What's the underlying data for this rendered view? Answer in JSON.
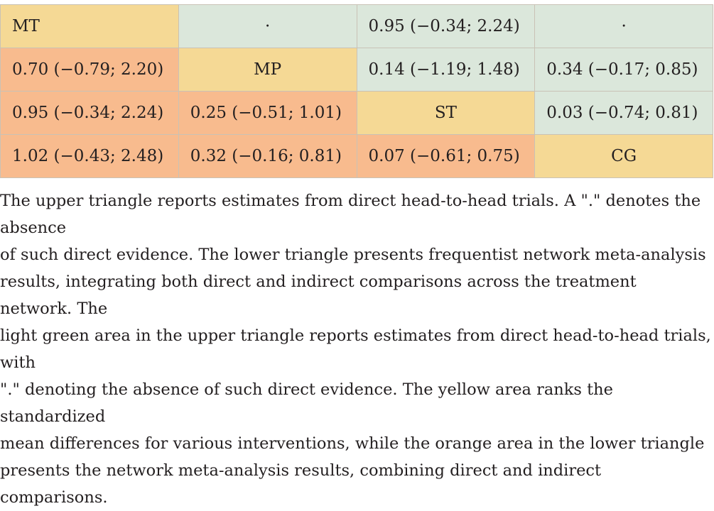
{
  "table": {
    "rows": [
      [
        "MT",
        "·",
        "0.95 (−0.34; 2.24)",
        "·"
      ],
      [
        "0.70 (−0.79; 2.20)",
        "MP",
        "0.14 (−1.19; 1.48)",
        "0.34 (−0.17; 0.85)"
      ],
      [
        "0.95 (−0.34; 2.24)",
        "0.25 (−0.51; 1.01)",
        "ST",
        "0.03 (−0.74; 0.81)"
      ],
      [
        "1.02 (−0.43; 2.48)",
        "0.32 (−0.16; 0.81)",
        "0.07 (−0.61; 0.75)",
        "CG"
      ]
    ]
  },
  "caption": {
    "lines": [
      "The upper triangle reports estimates from direct head-to-head trials. A \".\" denotes the absence",
      "of such direct evidence. The lower triangle presents frequentist network meta-analysis",
      "results, integrating both direct and indirect comparisons across the treatment network. The",
      "light green area in the upper triangle reports estimates from direct head-to-head trials, with",
      "\".\" denoting the absence of such direct evidence. The yellow area ranks the standardized",
      "mean differences for various interventions, while the orange area in the lower triangle",
      "presents the network meta-analysis results, combining direct and indirect comparisons."
    ]
  },
  "colors": {
    "diagonal": "#f5d995",
    "upper": "#dbe7db",
    "lower": "#f8bb8e"
  }
}
